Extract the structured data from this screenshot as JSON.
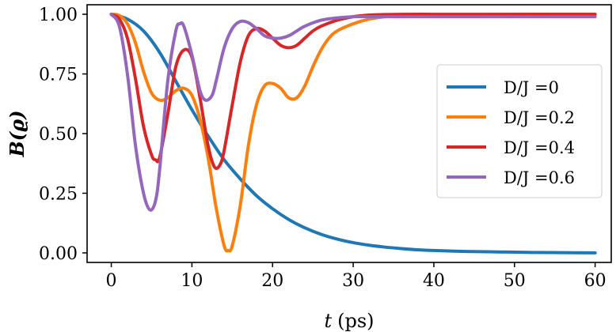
{
  "chart_data": {
    "type": "line",
    "title": "",
    "xlabel": "t (ps)",
    "xlabel_var": "t",
    "xlabel_unit": "(ps)",
    "ylabel": "B(ϱ)",
    "xlim": [
      -3,
      62
    ],
    "ylim": [
      -0.04,
      1.04
    ],
    "xticks": [
      0,
      10,
      20,
      30,
      40,
      50,
      60
    ],
    "xtick_labels": [
      "0",
      "10",
      "20",
      "30",
      "40",
      "50",
      "60"
    ],
    "yticks": [
      0.0,
      0.25,
      0.5,
      0.75,
      1.0
    ],
    "ytick_labels": [
      "0.00",
      "0.25",
      "0.50",
      "0.75",
      "1.00"
    ],
    "grid": false,
    "legend_position": "center-right",
    "series": [
      {
        "name": "D/J =0",
        "color": "#1f77b4",
        "x": [
          0,
          2,
          4,
          6,
          8,
          10,
          12,
          14,
          16,
          18,
          20,
          22,
          24,
          26,
          28,
          30,
          32,
          34,
          36,
          38,
          40,
          44,
          48,
          52,
          56,
          60
        ],
        "y": [
          1.0,
          0.98,
          0.93,
          0.84,
          0.72,
          0.6,
          0.49,
          0.39,
          0.31,
          0.24,
          0.185,
          0.14,
          0.105,
          0.078,
          0.058,
          0.043,
          0.032,
          0.024,
          0.018,
          0.013,
          0.01,
          0.006,
          0.004,
          0.002,
          0.001,
          0.0
        ]
      },
      {
        "name": "D/J =0.2",
        "color": "#ff7f0e",
        "x": [
          0,
          1,
          2,
          3,
          4,
          5,
          6,
          7,
          8,
          9,
          10,
          11,
          12,
          13,
          14,
          14.5,
          15,
          16,
          17,
          18,
          19,
          20,
          21,
          22,
          23,
          24,
          25,
          26,
          27,
          28,
          30,
          32,
          34,
          36,
          40,
          44,
          48,
          52,
          56,
          60
        ],
        "y": [
          1.0,
          0.995,
          0.96,
          0.88,
          0.76,
          0.67,
          0.64,
          0.65,
          0.68,
          0.69,
          0.66,
          0.56,
          0.4,
          0.19,
          0.03,
          0.01,
          0.03,
          0.2,
          0.45,
          0.62,
          0.7,
          0.71,
          0.69,
          0.65,
          0.65,
          0.7,
          0.78,
          0.85,
          0.9,
          0.93,
          0.96,
          0.98,
          0.99,
          0.995,
          0.997,
          0.998,
          0.999,
          1.0,
          1.0,
          1.0
        ]
      },
      {
        "name": "D/J =0.4",
        "color": "#d62728",
        "x": [
          0,
          1,
          2,
          3,
          4,
          5,
          5.5,
          6,
          7,
          8,
          9,
          10,
          11,
          12,
          12.8,
          13.5,
          14,
          15,
          16,
          17,
          18,
          19,
          20,
          21,
          22,
          23,
          24,
          25,
          26,
          28,
          30,
          32,
          34,
          36,
          40,
          44,
          48,
          52,
          56,
          60
        ],
        "y": [
          1.0,
          0.98,
          0.9,
          0.73,
          0.53,
          0.41,
          0.39,
          0.4,
          0.58,
          0.78,
          0.85,
          0.82,
          0.65,
          0.45,
          0.36,
          0.37,
          0.43,
          0.62,
          0.8,
          0.91,
          0.94,
          0.93,
          0.9,
          0.87,
          0.86,
          0.87,
          0.9,
          0.93,
          0.95,
          0.975,
          0.99,
          0.997,
          0.999,
          1.0,
          1.0,
          1.0,
          1.0,
          1.0,
          1.0,
          1.0
        ]
      },
      {
        "name": "D/J =0.6",
        "color": "#9467bd",
        "x": [
          0,
          1,
          2,
          3,
          4,
          4.8,
          5.5,
          6,
          7,
          8,
          8.5,
          9,
          10,
          11,
          11.7,
          12.5,
          13,
          14,
          15,
          16,
          17,
          18,
          19,
          20,
          21,
          22,
          23,
          24,
          26,
          28,
          30,
          32,
          34,
          36,
          40,
          44,
          48,
          52,
          56,
          60
        ],
        "y": [
          1.0,
          0.95,
          0.75,
          0.45,
          0.25,
          0.18,
          0.22,
          0.35,
          0.72,
          0.93,
          0.96,
          0.95,
          0.83,
          0.68,
          0.64,
          0.66,
          0.72,
          0.86,
          0.94,
          0.97,
          0.965,
          0.94,
          0.91,
          0.9,
          0.9,
          0.91,
          0.93,
          0.95,
          0.975,
          0.985,
          0.99,
          0.99,
          0.99,
          0.99,
          0.99,
          0.99,
          0.99,
          0.99,
          0.99,
          0.99
        ]
      }
    ]
  }
}
